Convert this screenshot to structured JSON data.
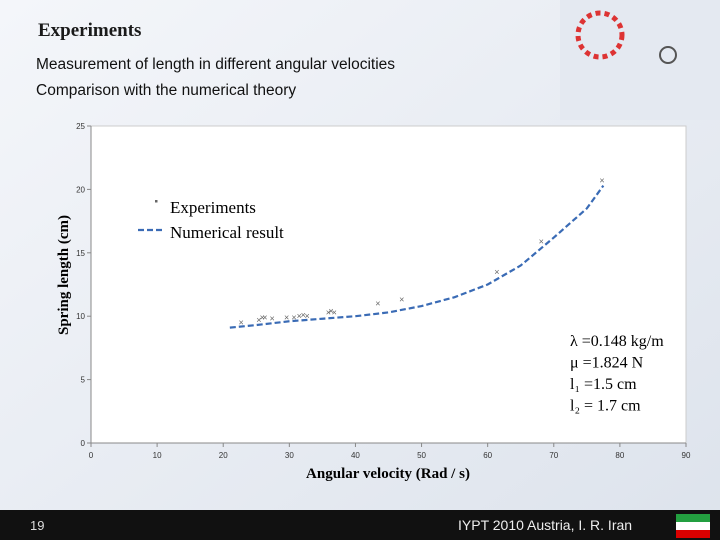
{
  "slide": {
    "title": "Experiments",
    "subtitle_lines": [
      "Measurement of length in different angular velocities",
      "Comparison with the numerical theory"
    ],
    "page_number": "19",
    "footer": "IYPT 2010 Austria, I. R. Iran"
  },
  "chart_data": {
    "type": "scatter",
    "x_label": "Angular velocity (Rad / s)",
    "y_label": "Spring length (cm)",
    "xlim": [
      0,
      90
    ],
    "xticks": [
      0,
      10,
      20,
      30,
      40,
      50,
      60,
      70,
      80,
      90
    ],
    "ylim": [
      0,
      25
    ],
    "yticks": [
      0,
      5,
      10,
      15,
      20,
      25
    ],
    "series": [
      {
        "name": "Experiments",
        "color": "#666666",
        "mode": "markers",
        "x": [
          22.7,
          25.4,
          25.9,
          26.3,
          27.4,
          29.6,
          30.7,
          31.5,
          32.1,
          32.7,
          35.9,
          36.3,
          36.8,
          43.4,
          47.0,
          61.4,
          68.1,
          77.3
        ],
        "values": [
          9.5,
          9.7,
          9.9,
          9.9,
          9.8,
          9.9,
          9.9,
          10.0,
          10.1,
          10.0,
          10.3,
          10.4,
          10.3,
          11.0,
          11.3,
          13.5,
          15.9,
          20.7
        ]
      },
      {
        "name": "Numerical result",
        "color": "#3a6bb5",
        "mode": "dashed-line",
        "x": [
          21,
          25,
          30,
          35,
          40,
          45,
          50,
          55,
          60,
          65,
          70,
          75,
          77.5
        ],
        "values": [
          9.1,
          9.3,
          9.6,
          9.8,
          10.0,
          10.3,
          10.8,
          11.5,
          12.5,
          14.0,
          16.2,
          18.5,
          20.3
        ]
      }
    ],
    "annotations": [
      "λ =0.148 kg/m",
      "μ =1.824 N",
      "l₁ =1.5 cm",
      "l₂ = 1.7 cm"
    ]
  }
}
